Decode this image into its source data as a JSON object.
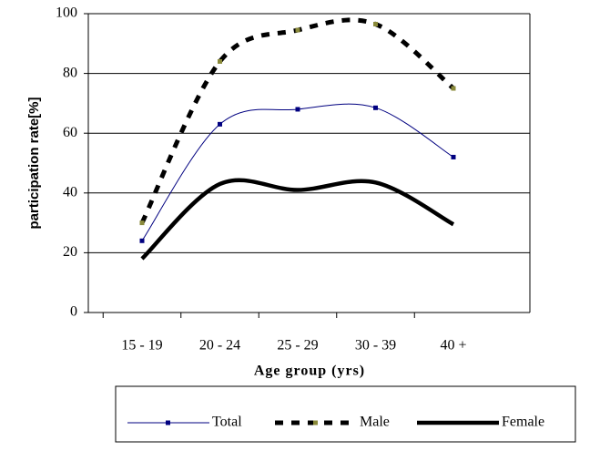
{
  "chart_data": {
    "type": "line",
    "x_label": "Age group (yrs)",
    "y_label": "participation rate[%]",
    "categories": [
      "15 - 19",
      "20 - 24",
      "25 - 29",
      "30 - 39",
      "40 +"
    ],
    "series": [
      {
        "name": "Total",
        "color": "#000080",
        "values": [
          24,
          63,
          68,
          68.5,
          52
        ]
      },
      {
        "name": "Male",
        "color": "#000000",
        "values": [
          30,
          84,
          94.5,
          96.5,
          75
        ]
      },
      {
        "name": "Female",
        "color": "#000000",
        "values": [
          18,
          43,
          41,
          43.5,
          29.5
        ]
      }
    ],
    "ylim": [
      0,
      100
    ],
    "yticks": [
      0,
      20,
      40,
      60,
      80,
      100
    ],
    "grid": true,
    "legend": "bottom"
  }
}
